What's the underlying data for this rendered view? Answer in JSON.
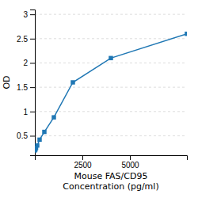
{
  "chart_data": {
    "type": "line",
    "x": [
      0,
      31.25,
      62.5,
      125,
      250,
      500,
      1000,
      2000,
      4000,
      8000
    ],
    "values": [
      0.2,
      0.22,
      0.25,
      0.3,
      0.42,
      0.58,
      0.88,
      1.6,
      2.1,
      2.6
    ],
    "xlabel": "Mouse FAS/CD95\nConcentration (pg/ml)",
    "ylabel": "OD",
    "xlim": [
      0,
      8000
    ],
    "ylim": [
      0.1,
      3.1
    ],
    "xticks": [
      2500,
      5000
    ],
    "yticks": [
      0.5,
      1,
      1.5,
      2,
      2.5,
      3
    ],
    "marker": "square",
    "grid": true
  }
}
